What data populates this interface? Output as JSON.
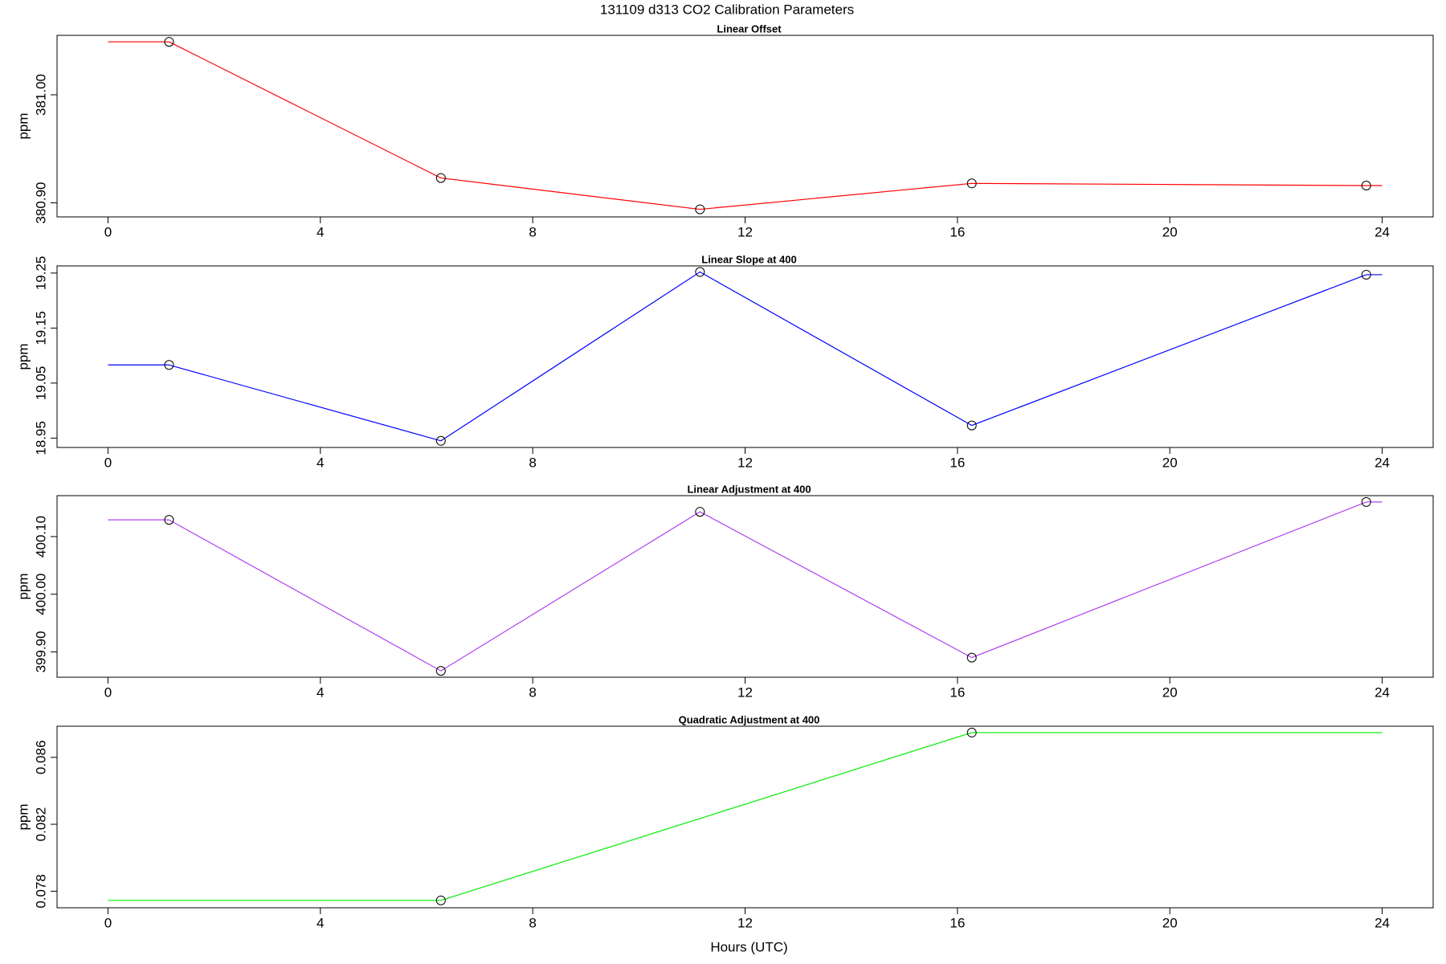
{
  "title": "131109   d313   CO2 Calibration Parameters",
  "chart_data": [
    {
      "type": "line",
      "title": "Linear Offset",
      "y_label": "ppm",
      "x": [
        1.15,
        6.27,
        11.15,
        16.27,
        23.7
      ],
      "series": [
        {
          "color": "#ff0000",
          "values": [
            381.049,
            380.923,
            380.894,
            380.918,
            380.916
          ]
        }
      ],
      "xlim": [
        -0.96,
        24.96
      ],
      "xticks": [
        0,
        4,
        8,
        12,
        16,
        20,
        24
      ],
      "ylim": [
        380.887,
        381.055
      ],
      "yticks": [
        {
          "value": 380.9,
          "label": "380.90"
        },
        {
          "value": 381.0,
          "label": "381.00"
        }
      ]
    },
    {
      "type": "line",
      "title": "Linear Slope at 400",
      "y_label": "ppm",
      "x": [
        1.15,
        6.27,
        11.15,
        16.27,
        23.7
      ],
      "series": [
        {
          "color": "#0000ff",
          "values": [
            19.083,
            18.945,
            19.252,
            18.973,
            19.247
          ]
        }
      ],
      "xlim": [
        -0.96,
        24.96
      ],
      "xticks": [
        0,
        4,
        8,
        12,
        16,
        20,
        24
      ],
      "ylim": [
        18.933,
        19.263
      ],
      "yticks": [
        18.95,
        19.05,
        19.15,
        19.25
      ]
    },
    {
      "type": "line",
      "title": "Linear Adjustment at 400",
      "y_label": "ppm",
      "x": [
        1.15,
        6.27,
        11.15,
        16.27,
        23.7
      ],
      "series": [
        {
          "color": "#b040f0",
          "values": [
            400.129,
            399.867,
            400.143,
            399.89,
            400.16
          ]
        }
      ],
      "xlim": [
        -0.96,
        24.96
      ],
      "xticks": [
        0,
        4,
        8,
        12,
        16,
        20,
        24
      ],
      "ylim": [
        399.856,
        400.171
      ],
      "yticks": [
        {
          "value": 399.9,
          "label": "399.90"
        },
        {
          "value": 400.0,
          "label": "400.00"
        },
        {
          "value": 400.1,
          "label": "400.10"
        }
      ]
    },
    {
      "type": "line",
      "title": "Quadratic Adjustment at 400",
      "y_label": "ppm",
      "x_label": "Hours (UTC)",
      "x": [
        6.27,
        16.27
      ],
      "series": [
        {
          "color": "#00ee00",
          "values": [
            0.07745,
            0.08748
          ]
        }
      ],
      "xlim": [
        -0.96,
        24.96
      ],
      "xticks": [
        0,
        4,
        8,
        12,
        16,
        20,
        24
      ],
      "ylim": [
        0.07701,
        0.08786
      ],
      "yticks": [
        0.078,
        0.082,
        0.086
      ]
    }
  ]
}
